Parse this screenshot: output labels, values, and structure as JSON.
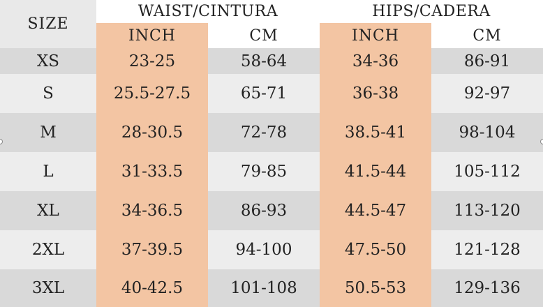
{
  "header": {
    "size_label": "SIZE",
    "waist_label": "WAIST/CINTURA",
    "hips_label": "HIPS/CADERA",
    "inch_label": "INCH",
    "cm_label": "CM"
  },
  "rows": [
    {
      "size": "XS",
      "waist_inch": "23-25",
      "waist_cm": "58-64",
      "hips_inch": "34-36",
      "hips_cm": "86-91"
    },
    {
      "size": "S",
      "waist_inch": "25.5-27.5",
      "waist_cm": "65-71",
      "hips_inch": "36-38",
      "hips_cm": "92-97"
    },
    {
      "size": "M",
      "waist_inch": "28-30.5",
      "waist_cm": "72-78",
      "hips_inch": "38.5-41",
      "hips_cm": "98-104"
    },
    {
      "size": "L",
      "waist_inch": "31-33.5",
      "waist_cm": "79-85",
      "hips_inch": "41.5-44",
      "hips_cm": "105-112"
    },
    {
      "size": "XL",
      "waist_inch": "34-36.5",
      "waist_cm": "86-93",
      "hips_inch": "44.5-47",
      "hips_cm": "113-120"
    },
    {
      "size": "2XL",
      "waist_inch": "37-39.5",
      "waist_cm": "94-100",
      "hips_inch": "47.5-50",
      "hips_cm": "121-128"
    },
    {
      "size": "3XL",
      "waist_inch": "40-42.5",
      "waist_cm": "101-108",
      "hips_inch": "50.5-53",
      "hips_cm": "129-136"
    }
  ],
  "colors": {
    "inch_column": "#f3c5a3",
    "dark_row": "#d9d9d9",
    "light_row": "#ededed",
    "header_gray": "#e9e9e9",
    "text": "#222222"
  }
}
